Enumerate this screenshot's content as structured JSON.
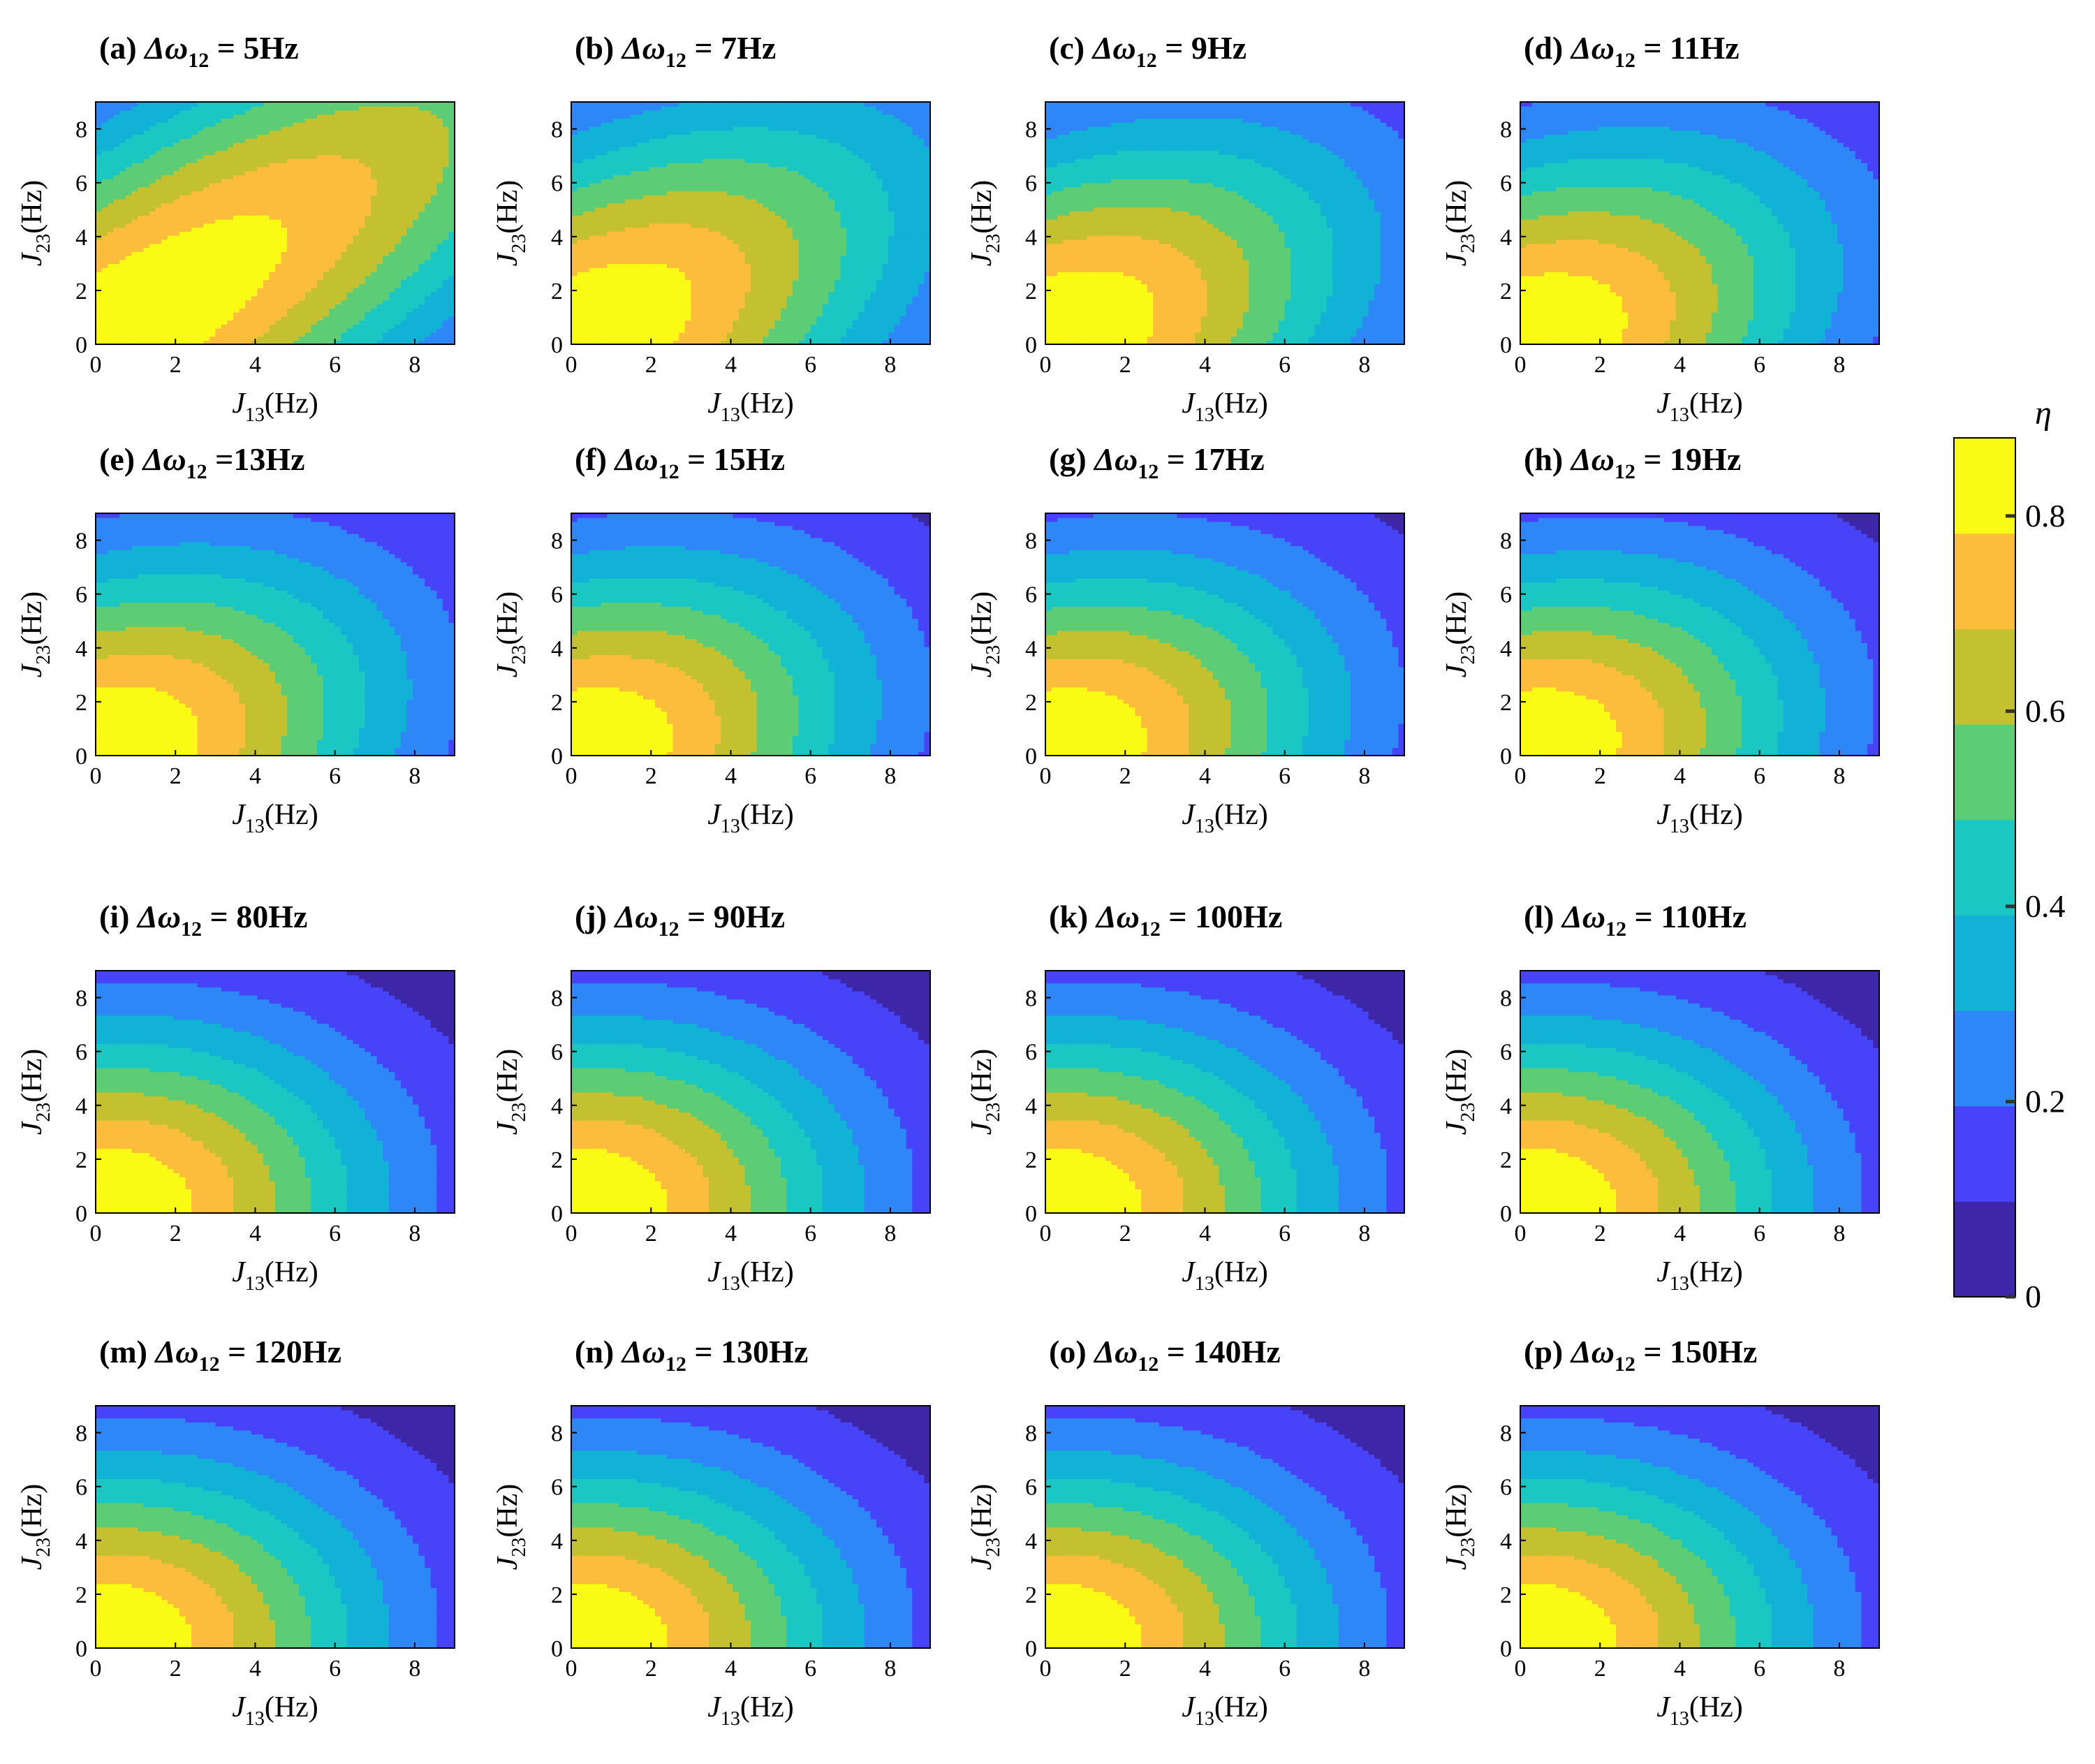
{
  "chart_data": {
    "type": "contour",
    "colorbar": {
      "symbol": "η",
      "range": [
        0,
        0.88
      ],
      "ticks": [
        "0",
        "0.2",
        "0.4",
        "0.6",
        "0.8"
      ],
      "tick_values": [
        0,
        0.2,
        0.4,
        0.6,
        0.8
      ],
      "colormap": [
        "#3e26a8",
        "#4743f8",
        "#2e87f7",
        "#12b1d6",
        "#1ac7c2",
        "#5dcd75",
        "#c3c130",
        "#fdbd3c",
        "#f9fb15"
      ]
    },
    "axes": {
      "xlim": [
        0,
        9
      ],
      "ylim": [
        0,
        9
      ],
      "xticks": [
        "0",
        "2",
        "4",
        "6",
        "8"
      ],
      "yticks": [
        "0",
        "2",
        "4",
        "6",
        "8"
      ],
      "xlabel_main": "J",
      "xlabel_sub": "13",
      "xlabel_unit": "(Hz)",
      "ylabel_main": "J",
      "ylabel_sub": "23",
      "ylabel_unit": "(Hz)"
    },
    "panels": [
      {
        "id": "a",
        "tag": "(a)",
        "symbol": "Δω",
        "sub": "12",
        "value": "= 5Hz",
        "dw": 5
      },
      {
        "id": "b",
        "tag": "(b)",
        "symbol": "Δω",
        "sub": "12",
        "value": "= 7Hz",
        "dw": 7
      },
      {
        "id": "c",
        "tag": "(c)",
        "symbol": "Δω",
        "sub": "12",
        "value": "= 9Hz",
        "dw": 9
      },
      {
        "id": "d",
        "tag": "(d)",
        "symbol": "Δω",
        "sub": "12",
        "value": "= 11Hz",
        "dw": 11
      },
      {
        "id": "e",
        "tag": "(e)",
        "symbol": "Δω",
        "sub": "12",
        "value": "=13Hz",
        "dw": 13
      },
      {
        "id": "f",
        "tag": "(f)",
        "symbol": "Δω",
        "sub": "12",
        "value": "= 15Hz",
        "dw": 15
      },
      {
        "id": "g",
        "tag": "(g)",
        "symbol": "Δω",
        "sub": "12",
        "value": "= 17Hz",
        "dw": 17
      },
      {
        "id": "h",
        "tag": "(h)",
        "symbol": "Δω",
        "sub": "12",
        "value": "= 19Hz",
        "dw": 19
      },
      {
        "id": "i",
        "tag": "(i)",
        "symbol": "Δω",
        "sub": "12",
        "value": "= 80Hz",
        "dw": 80
      },
      {
        "id": "j",
        "tag": "(j)",
        "symbol": "Δω",
        "sub": "12",
        "value": "= 90Hz",
        "dw": 90
      },
      {
        "id": "k",
        "tag": "(k)",
        "symbol": "Δω",
        "sub": "12",
        "value": "= 100Hz",
        "dw": 100
      },
      {
        "id": "l",
        "tag": "(l)",
        "symbol": "Δω",
        "sub": "12",
        "value": "= 110Hz",
        "dw": 110
      },
      {
        "id": "m",
        "tag": "(m)",
        "symbol": "Δω",
        "sub": "12",
        "value": "= 120Hz",
        "dw": 120
      },
      {
        "id": "n",
        "tag": "(n)",
        "symbol": "Δω",
        "sub": "12",
        "value": "= 130Hz",
        "dw": 130
      },
      {
        "id": "o",
        "tag": "(o)",
        "symbol": "Δω",
        "sub": "12",
        "value": "= 140Hz",
        "dw": 140
      },
      {
        "id": "p",
        "tag": "(p)",
        "symbol": "Δω",
        "sub": "12",
        "value": "= 150Hz",
        "dw": 150
      }
    ]
  }
}
